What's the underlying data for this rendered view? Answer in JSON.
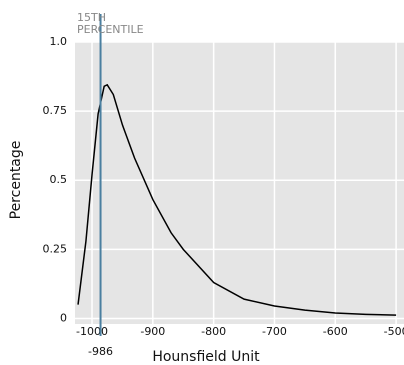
{
  "chart_data": {
    "type": "line",
    "xlabel": "Hounsfield Unit",
    "ylabel": "Percentage",
    "series": [
      {
        "color": "#000000",
        "x": [
          -1023,
          -1010,
          -1000,
          -990,
          -980,
          -975,
          -965,
          -950,
          -930,
          -900,
          -870,
          -850,
          -800,
          -750,
          -700,
          -650,
          -600,
          -550,
          -500
        ],
        "values": [
          0.05,
          0.28,
          0.52,
          0.74,
          0.84,
          0.845,
          0.81,
          0.7,
          0.58,
          0.43,
          0.31,
          0.25,
          0.13,
          0.07,
          0.045,
          0.03,
          0.02,
          0.015,
          0.012
        ]
      }
    ],
    "annotation": {
      "x": -986,
      "text": [
        "15TH",
        "PERCENTILE"
      ],
      "color": "#4a7fa0"
    },
    "xlim": [
      -1028,
      -487
    ],
    "xticks": [
      -1000,
      -900,
      -800,
      -700,
      -600,
      -500
    ],
    "ylim": [
      -0.02,
      1.0
    ],
    "yticks": [
      {
        "value": 1,
        "label": "1.0"
      },
      0.75,
      0.5,
      0.25,
      0
    ],
    "grid": true,
    "background": "#e5e5e5"
  }
}
